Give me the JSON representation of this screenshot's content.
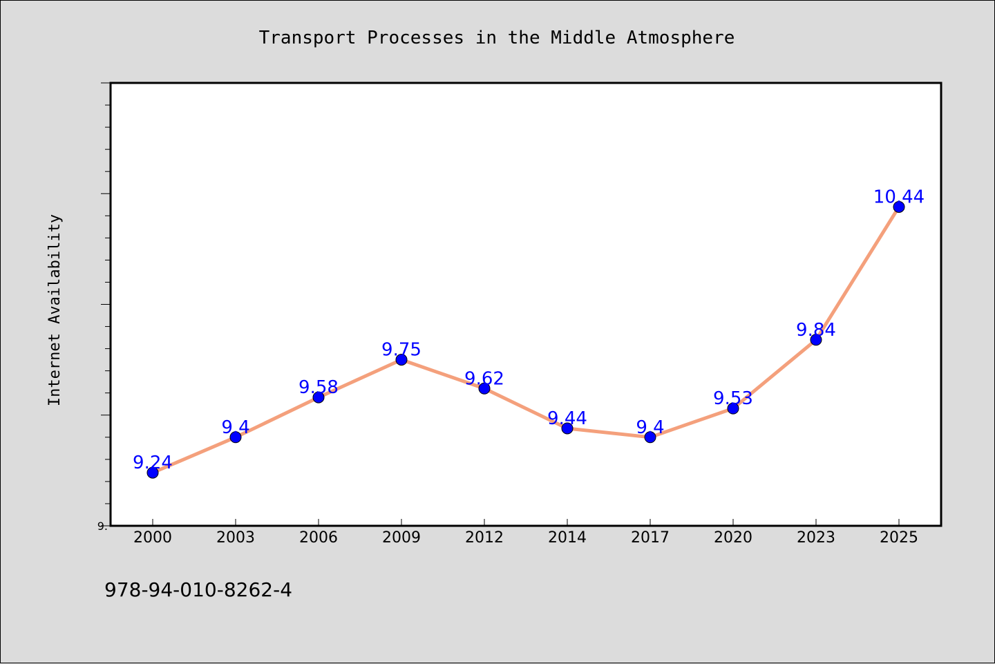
{
  "chart_data": {
    "type": "line",
    "title": "Transport Processes in the Middle Atmosphere",
    "ylabel": "Internet Availability",
    "categories": [
      "2000",
      "2003",
      "2006",
      "2009",
      "2012",
      "2014",
      "2017",
      "2020",
      "2023",
      "2025"
    ],
    "values": [
      9.24,
      9.4,
      9.58,
      9.75,
      9.62,
      9.44,
      9.4,
      9.53,
      9.84,
      10.44
    ],
    "data_labels": [
      "9.24",
      "9.4",
      "9.58",
      "9.75",
      "9.62",
      "9.44",
      "9.4",
      "9.53",
      "9.84",
      "10.44"
    ],
    "ylim": [
      9.0,
      11.0
    ],
    "ytick_labels": [
      {
        "value": 9.0,
        "label": "9."
      }
    ],
    "line_color": "#f4a07c",
    "marker_color": "#0000ff",
    "label_color": "#0000ff",
    "grid": false,
    "legend": "none"
  },
  "footer": {
    "isbn": "978-94-010-8262-4"
  }
}
